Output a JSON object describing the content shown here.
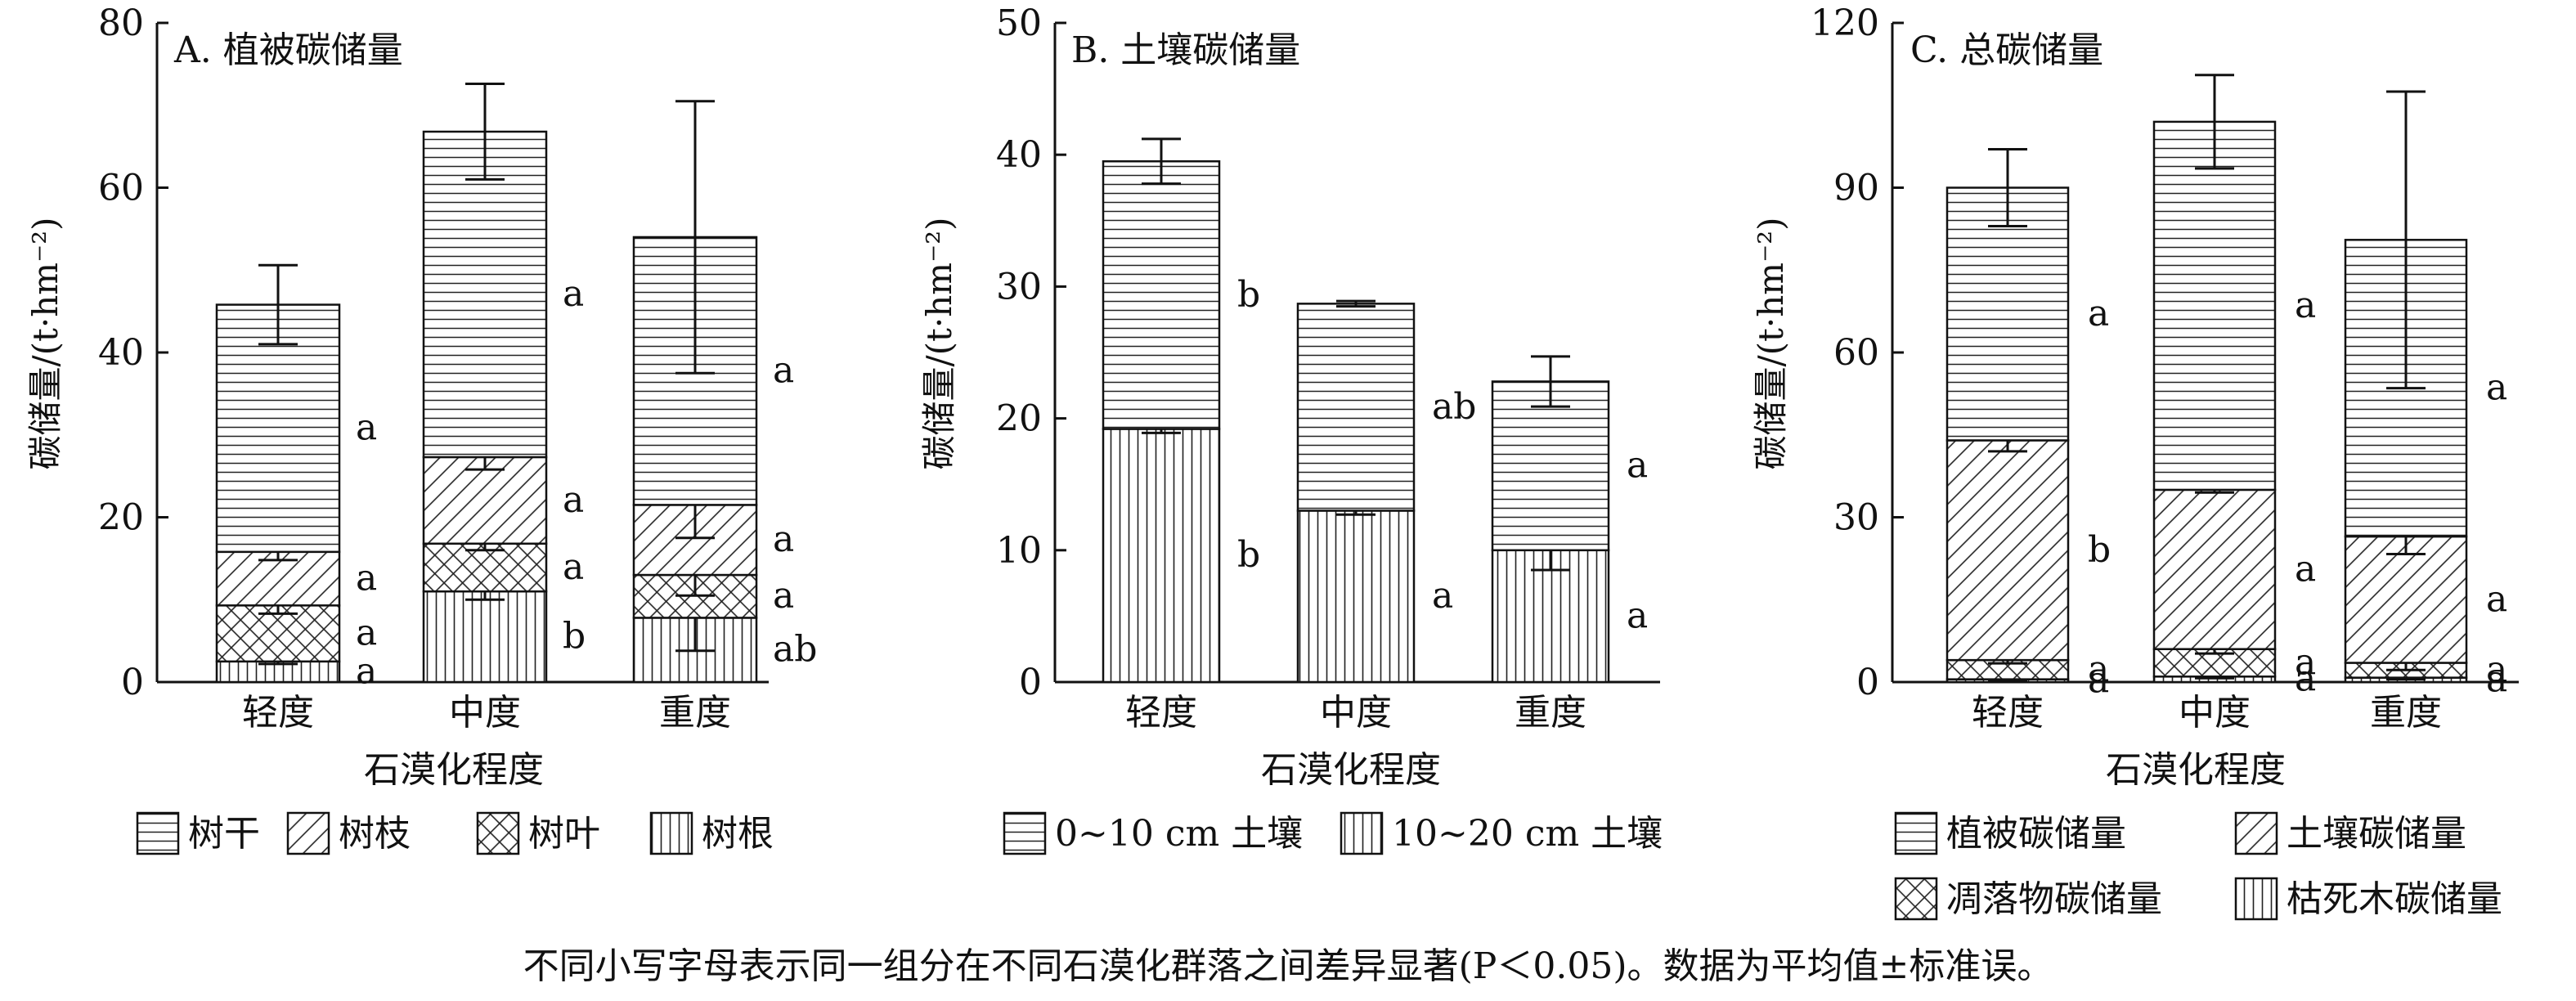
{
  "chart_data": [
    {
      "type": "bar",
      "stacked": true,
      "title": "A. 植被碳储量",
      "xlabel": "石漠化程度",
      "ylabel": "碳储量/(t·hm⁻²)",
      "ylim": [
        0,
        80
      ],
      "yticks": [
        0,
        20,
        40,
        60,
        80
      ],
      "categories": [
        "轻度",
        "中度",
        "重度"
      ],
      "series": [
        {
          "name": "树根",
          "pattern": "vert",
          "values": [
            2.5,
            11.0,
            7.8
          ],
          "errors": [
            0.3,
            1.0,
            4.0
          ],
          "letters": [
            "a",
            "b",
            "ab"
          ]
        },
        {
          "name": "树叶",
          "pattern": "cross",
          "values": [
            6.8,
            5.8,
            5.2
          ],
          "errors": [
            1.0,
            0.8,
            2.5
          ],
          "letters": [
            "a",
            "a",
            "a"
          ]
        },
        {
          "name": "树枝",
          "pattern": "diag",
          "values": [
            6.5,
            10.5,
            8.5
          ],
          "errors": [
            1.0,
            1.5,
            4.0
          ],
          "letters": [
            "a",
            "a",
            "a"
          ]
        },
        {
          "name": "树干",
          "pattern": "horiz",
          "values": [
            30.0,
            39.5,
            32.5
          ],
          "errors": [
            4.8,
            5.8,
            16.5
          ],
          "letters": [
            "a",
            "a",
            "a"
          ]
        }
      ],
      "legend_order": [
        "树干",
        "树枝",
        "树叶",
        "树根"
      ]
    },
    {
      "type": "bar",
      "stacked": true,
      "title": "B. 土壤碳储量",
      "xlabel": "石漠化程度",
      "ylabel": "碳储量/(t·hm⁻²)",
      "ylim": [
        0,
        50
      ],
      "yticks": [
        0,
        10,
        20,
        30,
        40,
        50
      ],
      "categories": [
        "轻度",
        "中度",
        "重度"
      ],
      "series": [
        {
          "name": "10~20 cm 土壤",
          "pattern": "vert",
          "values": [
            19.2,
            13.0,
            10.0
          ],
          "errors": [
            0.3,
            0.3,
            1.5
          ],
          "letters": [
            "b",
            "a",
            "a"
          ]
        },
        {
          "name": "0~10 cm 土壤",
          "pattern": "horiz",
          "values": [
            20.3,
            15.7,
            12.8
          ],
          "errors": [
            1.7,
            0.2,
            1.9
          ],
          "letters": [
            "b",
            "ab",
            "a"
          ]
        }
      ],
      "legend_order": [
        "0~10 cm 土壤",
        "10~20 cm 土壤"
      ]
    },
    {
      "type": "bar",
      "stacked": true,
      "title": "C. 总碳储量",
      "xlabel": "石漠化程度",
      "ylabel": "碳储量/(t·hm⁻²)",
      "ylim": [
        0,
        120
      ],
      "yticks": [
        0,
        30,
        60,
        90,
        120
      ],
      "categories": [
        "轻度",
        "中度",
        "重度"
      ],
      "series": [
        {
          "name": "枯死木碳储量",
          "pattern": "vert",
          "values": [
            0.5,
            1.0,
            0.8
          ],
          "errors": [
            0.2,
            0.3,
            0.3
          ],
          "letters": [
            "a",
            "a",
            "a"
          ]
        },
        {
          "name": "凋落物碳储量",
          "pattern": "cross",
          "values": [
            3.5,
            5.0,
            2.7
          ],
          "errors": [
            0.6,
            0.8,
            1.3
          ],
          "letters": [
            "a",
            "a",
            "a"
          ]
        },
        {
          "name": "土壤碳储量",
          "pattern": "diag",
          "values": [
            40.0,
            29.0,
            23.0
          ],
          "errors": [
            2.0,
            0.5,
            3.2
          ],
          "letters": [
            "b",
            "a",
            "a"
          ]
        },
        {
          "name": "植被碳储量",
          "pattern": "horiz",
          "values": [
            46.0,
            67.0,
            54.0
          ],
          "errors": [
            7.0,
            8.5,
            27.0
          ],
          "letters": [
            "a",
            "a",
            "a"
          ]
        }
      ],
      "legend_order": [
        "植被碳储量",
        "土壤碳储量",
        "凋落物碳储量",
        "枯死木碳储量"
      ]
    }
  ],
  "caption": "不同小写字母表示同一组分在不同石漠化群落之间差异显著(P＜0.05)。数据为平均值±标准误。"
}
